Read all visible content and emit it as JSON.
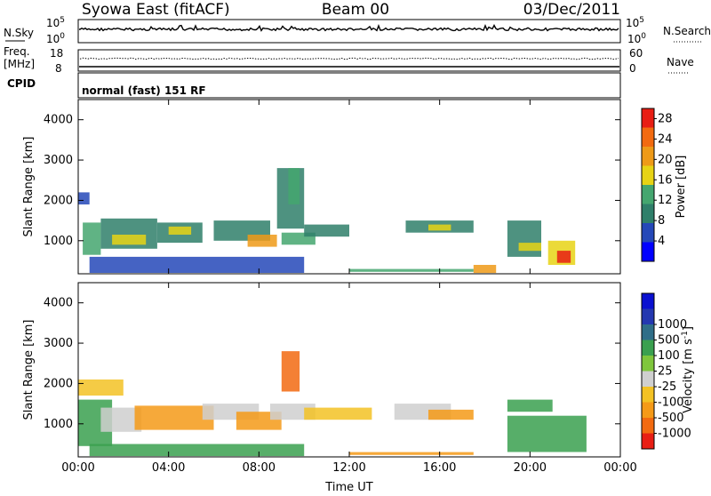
{
  "header": {
    "station": "Syowa East (fitACF)",
    "beam": "Beam 00",
    "date": "03/Dec/2011"
  },
  "top_panels": {
    "nsky_label": "N.Sky",
    "nsky_ticks": [
      "10^5",
      "10^0"
    ],
    "nsearch_label": "N.Search",
    "nsearch_ticks": [
      "10^5",
      "10^0"
    ],
    "freq_label_1": "Freq.",
    "freq_label_2": "[MHz]",
    "freq_ticks": [
      "18",
      "8"
    ],
    "nave_label": "Nave",
    "nave_ticks": [
      "60",
      "0"
    ],
    "cpid_label": "CPID",
    "cpid_text": "normal (fast) 151 RF"
  },
  "colors": {
    "power_scale": [
      "#0000ff",
      "#2548b8",
      "#2f7f6a",
      "#44a66f",
      "#e7d315",
      "#ee9a18",
      "#f26a10",
      "#e81e14"
    ],
    "velocity_scale": [
      "#e81e14",
      "#f26a10",
      "#f59a18",
      "#f3c224",
      "#cfcfcf",
      "#7fc63c",
      "#3aa04f",
      "#2f6e88",
      "#2438b0",
      "#0a10d0"
    ]
  },
  "chart_data": [
    {
      "type": "heatmap",
      "name": "power",
      "ylabel": "Slant Range [km]",
      "xlabel": "",
      "x_ticks": [
        "00:00",
        "04:00",
        "08:00",
        "12:00",
        "16:00",
        "20:00",
        "00:00"
      ],
      "xlim": [
        0,
        24
      ],
      "ylim": [
        180,
        4500
      ],
      "y_ticks": [
        1000,
        2000,
        3000,
        4000
      ],
      "colorbar": {
        "label": "Power [dB]",
        "ticks": [
          4,
          8,
          12,
          16,
          20,
          24,
          28
        ],
        "range": [
          0,
          30
        ]
      },
      "regions": [
        {
          "t": [
            0.0,
            0.5
          ],
          "r": [
            1900,
            2200
          ],
          "v": 6
        },
        {
          "t": [
            0.2,
            1.0
          ],
          "r": [
            650,
            1450
          ],
          "v": 13
        },
        {
          "t": [
            1.0,
            3.5
          ],
          "r": [
            800,
            1550
          ],
          "v": 11
        },
        {
          "t": [
            1.5,
            3.0
          ],
          "r": [
            900,
            1150
          ],
          "v": 17
        },
        {
          "t": [
            3.5,
            5.5
          ],
          "r": [
            950,
            1450
          ],
          "v": 9
        },
        {
          "t": [
            4.0,
            5.0
          ],
          "r": [
            1150,
            1350
          ],
          "v": 16
        },
        {
          "t": [
            6.0,
            8.5
          ],
          "r": [
            1000,
            1500
          ],
          "v": 10
        },
        {
          "t": [
            7.5,
            8.8
          ],
          "r": [
            850,
            1150
          ],
          "v": 20
        },
        {
          "t": [
            8.8,
            10.0
          ],
          "r": [
            1300,
            2800
          ],
          "v": 9
        },
        {
          "t": [
            9.3,
            9.8
          ],
          "r": [
            1900,
            2800
          ],
          "v": 12
        },
        {
          "t": [
            9.0,
            10.5
          ],
          "r": [
            900,
            1200
          ],
          "v": 14
        },
        {
          "t": [
            10.0,
            12.0
          ],
          "r": [
            1100,
            1400
          ],
          "v": 8
        },
        {
          "t": [
            14.5,
            17.5
          ],
          "r": [
            1200,
            1500
          ],
          "v": 10
        },
        {
          "t": [
            15.5,
            16.5
          ],
          "r": [
            1250,
            1400
          ],
          "v": 17
        },
        {
          "t": [
            17.5,
            18.5
          ],
          "r": [
            200,
            400
          ],
          "v": 22
        },
        {
          "t": [
            19.0,
            20.5
          ],
          "r": [
            600,
            1500
          ],
          "v": 9
        },
        {
          "t": [
            19.5,
            20.5
          ],
          "r": [
            750,
            950
          ],
          "v": 15
        },
        {
          "t": [
            20.8,
            22.0
          ],
          "r": [
            400,
            1000
          ],
          "v": 18
        },
        {
          "t": [
            21.2,
            21.8
          ],
          "r": [
            450,
            750
          ],
          "v": 27
        },
        {
          "t": [
            0.5,
            10.0
          ],
          "r": [
            200,
            600
          ],
          "v": 7
        },
        {
          "t": [
            12.0,
            17.5
          ],
          "r": [
            230,
            300
          ],
          "v": 14
        }
      ]
    },
    {
      "type": "heatmap",
      "name": "velocity",
      "ylabel": "Slant Range [km]",
      "xlabel": "Time UT",
      "x_ticks": [
        "00:00",
        "04:00",
        "08:00",
        "12:00",
        "16:00",
        "20:00",
        "00:00"
      ],
      "xlim": [
        0,
        24
      ],
      "ylim": [
        180,
        4500
      ],
      "y_ticks": [
        1000,
        2000,
        3000,
        4000
      ],
      "colorbar": {
        "label": "Velocity [m s^-1]",
        "ticks": [
          "-1000",
          "-500",
          "-100",
          "-25",
          "25",
          "100",
          "500",
          "1000"
        ]
      },
      "regions": [
        {
          "t": [
            0.0,
            1.5
          ],
          "r": [
            450,
            1600
          ],
          "v": 6
        },
        {
          "t": [
            0.0,
            2.0
          ],
          "r": [
            1700,
            2100
          ],
          "v": 3
        },
        {
          "t": [
            1.0,
            2.8
          ],
          "r": [
            800,
            1400
          ],
          "v": 4
        },
        {
          "t": [
            2.5,
            6.0
          ],
          "r": [
            850,
            1450
          ],
          "v": 2
        },
        {
          "t": [
            5.5,
            8.0
          ],
          "r": [
            1100,
            1500
          ],
          "v": 4
        },
        {
          "t": [
            7.0,
            9.0
          ],
          "r": [
            850,
            1300
          ],
          "v": 2
        },
        {
          "t": [
            9.0,
            9.8
          ],
          "r": [
            1800,
            2800
          ],
          "v": 1
        },
        {
          "t": [
            8.5,
            10.5
          ],
          "r": [
            1100,
            1500
          ],
          "v": 4
        },
        {
          "t": [
            10.0,
            13.0
          ],
          "r": [
            1100,
            1400
          ],
          "v": 3
        },
        {
          "t": [
            14.0,
            16.5
          ],
          "r": [
            1100,
            1500
          ],
          "v": 4
        },
        {
          "t": [
            15.5,
            17.5
          ],
          "r": [
            1100,
            1350
          ],
          "v": 2
        },
        {
          "t": [
            19.0,
            22.5
          ],
          "r": [
            300,
            1200
          ],
          "v": 6
        },
        {
          "t": [
            19.0,
            21.0
          ],
          "r": [
            1300,
            1600
          ],
          "v": 6
        },
        {
          "t": [
            0.5,
            10.0
          ],
          "r": [
            200,
            500
          ],
          "v": 6
        },
        {
          "t": [
            12.0,
            17.5
          ],
          "r": [
            230,
            300
          ],
          "v": 2
        }
      ]
    }
  ]
}
